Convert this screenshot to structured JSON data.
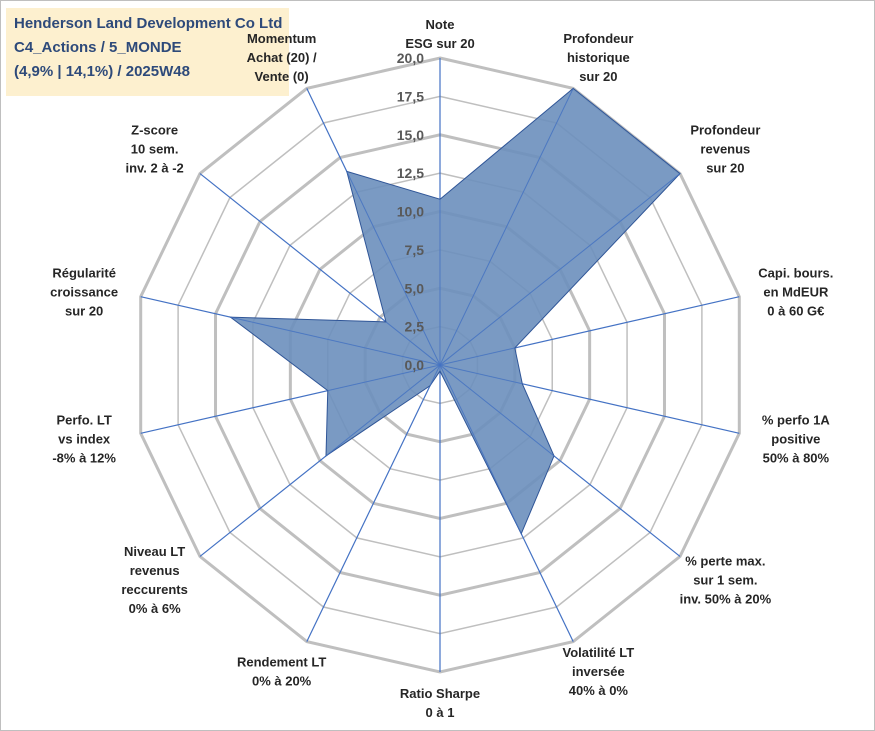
{
  "title": {
    "line1": "Henderson Land Development Co Ltd",
    "line2": "C4_Actions / 5_MONDE",
    "line3": "(4,9% | 14,1%) / 2025W48"
  },
  "colors": {
    "fill": "#6b8fbd",
    "edge": "#2f5597",
    "spoke": "#4472c4",
    "web": "#bfbfbf",
    "title_bg": "#fdf0cf",
    "title_text": "#2e4a7a"
  },
  "chart_data": {
    "type": "radar",
    "rmax": 20,
    "ticks": [
      "0,0",
      "2,5",
      "5,0",
      "7,5",
      "10,0",
      "12,5",
      "15,0",
      "17,5",
      "20,0"
    ],
    "grid_steps": [
      2.5,
      5,
      7.5,
      10,
      12.5,
      15,
      17.5,
      20
    ],
    "axes": [
      {
        "lines": [
          "Note",
          "ESG sur 20"
        ],
        "value": 10.8
      },
      {
        "lines": [
          "Profondeur",
          "historique",
          "sur 20"
        ],
        "value": 20
      },
      {
        "lines": [
          "Profondeur",
          "revenus",
          "sur 20"
        ],
        "value": 20
      },
      {
        "lines": [
          "Capi. bours.",
          "en MdEUR",
          "0 à 60 G€"
        ],
        "value": 5.0
      },
      {
        "lines": [
          "% perfo 1A",
          "positive",
          "50% à 80%"
        ],
        "value": 5.5
      },
      {
        "lines": [
          "% perte max.",
          "sur 1 sem.",
          "inv. 50% à 20%"
        ],
        "value": 9.5
      },
      {
        "lines": [
          "Volatilité LT",
          "inversée",
          "40% à 0%"
        ],
        "value": 12.2
      },
      {
        "lines": [
          "Ratio Sharpe",
          "0 à 1"
        ],
        "value": 0.4
      },
      {
        "lines": [
          "Rendement LT",
          "0% à 20%"
        ],
        "value": 1.5
      },
      {
        "lines": [
          "Niveau LT",
          "revenus",
          "reccurents",
          "0% à 6%"
        ],
        "value": 9.5
      },
      {
        "lines": [
          "Perfo. LT",
          "vs index",
          "-8% à 12%"
        ],
        "value": 7.5
      },
      {
        "lines": [
          "Régularité",
          "croissance",
          "sur 20"
        ],
        "value": 14.0
      },
      {
        "lines": [
          "Z-score",
          "10 sem.",
          "inv. 2 à -2"
        ],
        "value": 4.5
      },
      {
        "lines": [
          "Momentum",
          "Achat (20) /",
          "Vente (0)"
        ],
        "value": 14.0
      }
    ]
  }
}
